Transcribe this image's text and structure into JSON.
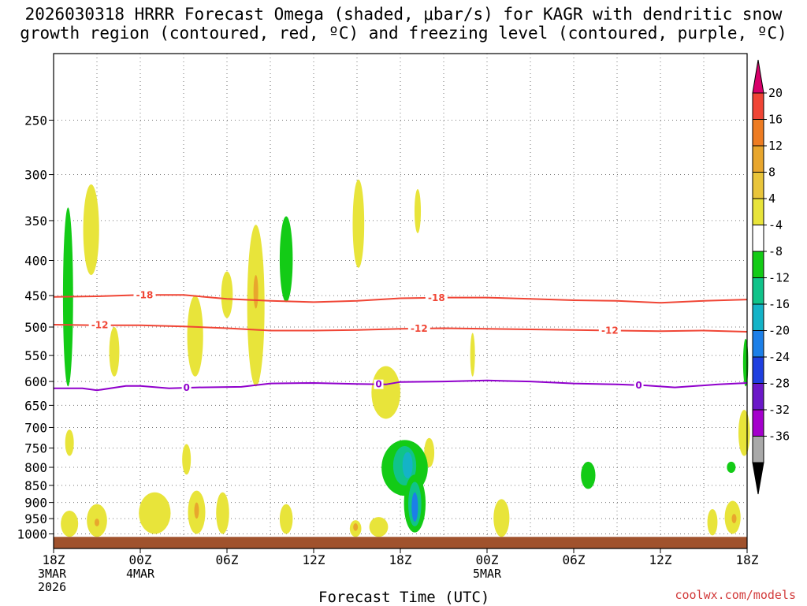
{
  "chart_data": {
    "type": "heatmap",
    "title_line1": "2026030318 HRRR Forecast Omega (shaded, μbar/s) for KAGR with dendritic snow",
    "title_line2": "growth region (contoured, red, ºC) and freezing level (contoured, purple, ºC)",
    "xlabel": "Forecast Time (UTC)",
    "credit": "coolwx.com/models",
    "x_range_hours": [
      0,
      48
    ],
    "x_ticks": [
      {
        "hour": 0,
        "lines": [
          "18Z",
          "3MAR",
          "2026"
        ]
      },
      {
        "hour": 6,
        "lines": [
          "00Z",
          "4MAR"
        ]
      },
      {
        "hour": 12,
        "lines": [
          "06Z"
        ]
      },
      {
        "hour": 18,
        "lines": [
          "12Z"
        ]
      },
      {
        "hour": 24,
        "lines": [
          "18Z"
        ]
      },
      {
        "hour": 30,
        "lines": [
          "00Z",
          "5MAR"
        ]
      },
      {
        "hour": 36,
        "lines": [
          "06Z"
        ]
      },
      {
        "hour": 42,
        "lines": [
          "12Z"
        ]
      },
      {
        "hour": 48,
        "lines": [
          "18Z"
        ]
      }
    ],
    "y_axis": {
      "unit": "hPa",
      "scale": "log-pressure",
      "range": [
        200,
        1050
      ],
      "ticks": [
        250,
        300,
        350,
        400,
        450,
        500,
        550,
        600,
        650,
        700,
        750,
        800,
        850,
        900,
        950,
        1000
      ]
    },
    "grid": true,
    "colorbar": {
      "labels": [
        "20",
        "16",
        "12",
        "8",
        "4",
        "-4",
        "-8",
        "-12",
        "-16",
        "-20",
        "-24",
        "-28",
        "-32",
        "-36"
      ],
      "colors": [
        "#d7006a",
        "#f04535",
        "#ee7c22",
        "#e8a62d",
        "#e9c53a",
        "#e8e43a",
        "#ffffff",
        "#13cb16",
        "#10c38a",
        "#14b3c7",
        "#1c7fe8",
        "#1f3fe0",
        "#6b18c8",
        "#a400cc",
        "#a9a9a9",
        "#000000"
      ]
    },
    "contours": [
      {
        "name": "dgz-minus18",
        "label": "-18",
        "color": "#f04535",
        "points": [
          [
            0,
            452
          ],
          [
            3,
            451
          ],
          [
            6,
            449
          ],
          [
            9,
            449
          ],
          [
            12,
            455
          ],
          [
            15,
            458
          ],
          [
            18,
            460
          ],
          [
            21,
            458
          ],
          [
            24,
            454
          ],
          [
            27,
            453
          ],
          [
            30,
            453
          ],
          [
            33,
            455
          ],
          [
            36,
            457
          ],
          [
            39,
            458
          ],
          [
            42,
            461
          ],
          [
            45,
            458
          ],
          [
            48,
            456
          ]
        ],
        "label_hours": [
          6.3,
          26.5
        ]
      },
      {
        "name": "dgz-minus12",
        "label": "-12",
        "color": "#f04535",
        "points": [
          [
            0,
            496
          ],
          [
            3,
            497
          ],
          [
            6,
            497
          ],
          [
            9,
            499
          ],
          [
            12,
            502
          ],
          [
            15,
            506
          ],
          [
            18,
            506
          ],
          [
            21,
            505
          ],
          [
            24,
            503
          ],
          [
            27,
            502
          ],
          [
            30,
            503
          ],
          [
            33,
            504
          ],
          [
            36,
            505
          ],
          [
            39,
            506
          ],
          [
            42,
            507
          ],
          [
            45,
            506
          ],
          [
            48,
            508
          ]
        ],
        "label_hours": [
          3.2,
          25.3,
          38.5
        ]
      },
      {
        "name": "freezing-level",
        "label": "0",
        "color": "#9000cc",
        "points": [
          [
            0,
            614
          ],
          [
            2,
            614
          ],
          [
            3,
            618
          ],
          [
            5,
            609
          ],
          [
            6,
            609
          ],
          [
            8,
            614
          ],
          [
            10,
            612
          ],
          [
            13,
            611
          ],
          [
            15,
            604
          ],
          [
            18,
            603
          ],
          [
            21,
            605
          ],
          [
            23,
            606
          ],
          [
            24,
            601
          ],
          [
            27,
            600
          ],
          [
            30,
            598
          ],
          [
            33,
            600
          ],
          [
            36,
            604
          ],
          [
            39,
            606
          ],
          [
            41,
            608
          ],
          [
            43,
            612
          ],
          [
            46,
            606
          ],
          [
            48,
            603
          ]
        ],
        "label_hours": [
          9.2,
          22.5,
          40.5
        ]
      }
    ],
    "omega_cells": [
      {
        "hour": 1.0,
        "p_top": 335,
        "p_bot": 610,
        "hw": 0.35,
        "color": "#13cb16"
      },
      {
        "hour": 2.6,
        "p_top": 310,
        "p_bot": 420,
        "hw": 0.55,
        "color": "#e8e43a"
      },
      {
        "hour": 4.2,
        "p_top": 500,
        "p_bot": 590,
        "hw": 0.35,
        "color": "#e8e43a"
      },
      {
        "hour": 1.1,
        "p_top": 705,
        "p_bot": 770,
        "hw": 0.3,
        "color": "#e8e43a"
      },
      {
        "hour": 1.1,
        "p_top": 925,
        "p_bot": 1010,
        "hw": 0.6,
        "color": "#e8e43a"
      },
      {
        "hour": 3.0,
        "p_top": 905,
        "p_bot": 1010,
        "hw": 0.7,
        "color": "#e8e43a"
      },
      {
        "hour": 3.0,
        "p_top": 950,
        "p_bot": 975,
        "hw": 0.12,
        "color": "#e8a62d"
      },
      {
        "hour": 7.0,
        "p_top": 870,
        "p_bot": 1000,
        "hw": 1.1,
        "color": "#e8e43a"
      },
      {
        "hour": 9.8,
        "p_top": 450,
        "p_bot": 590,
        "hw": 0.55,
        "color": "#e8e43a"
      },
      {
        "hour": 9.2,
        "p_top": 740,
        "p_bot": 820,
        "hw": 0.3,
        "color": "#e8e43a"
      },
      {
        "hour": 9.9,
        "p_top": 865,
        "p_bot": 1000,
        "hw": 0.6,
        "color": "#e8e43a"
      },
      {
        "hour": 9.9,
        "p_top": 900,
        "p_bot": 950,
        "hw": 0.15,
        "color": "#e8a62d"
      },
      {
        "hour": 11.7,
        "p_top": 870,
        "p_bot": 1000,
        "hw": 0.45,
        "color": "#e8e43a"
      },
      {
        "hour": 12.0,
        "p_top": 415,
        "p_bot": 485,
        "hw": 0.4,
        "color": "#e8e43a"
      },
      {
        "hour": 14.0,
        "p_top": 355,
        "p_bot": 610,
        "hw": 0.6,
        "color": "#e8e43a"
      },
      {
        "hour": 14.0,
        "p_top": 420,
        "p_bot": 470,
        "hw": 0.12,
        "color": "#e8a62d"
      },
      {
        "hour": 16.1,
        "p_top": 345,
        "p_bot": 460,
        "hw": 0.45,
        "color": "#13cb16"
      },
      {
        "hour": 16.1,
        "p_top": 905,
        "p_bot": 1000,
        "hw": 0.45,
        "color": "#e8e43a"
      },
      {
        "hour": 21.1,
        "p_top": 305,
        "p_bot": 410,
        "hw": 0.4,
        "color": "#e8e43a"
      },
      {
        "hour": 20.9,
        "p_top": 955,
        "p_bot": 1010,
        "hw": 0.4,
        "color": "#e8e43a"
      },
      {
        "hour": 20.9,
        "p_top": 965,
        "p_bot": 990,
        "hw": 0.1,
        "color": "#e8a62d"
      },
      {
        "hour": 23.0,
        "p_top": 570,
        "p_bot": 680,
        "hw": 1.0,
        "color": "#e8e43a"
      },
      {
        "hour": 22.5,
        "p_top": 945,
        "p_bot": 1010,
        "hw": 0.65,
        "color": "#e8e43a"
      },
      {
        "hour": 25.2,
        "p_top": 315,
        "p_bot": 365,
        "hw": 0.22,
        "color": "#e8e43a"
      },
      {
        "hour": 26.0,
        "p_top": 725,
        "p_bot": 800,
        "hw": 0.35,
        "color": "#e8e43a"
      },
      {
        "hour": 24.3,
        "p_top": 730,
        "p_bot": 880,
        "hw": 1.6,
        "color": "#13cb16"
      },
      {
        "hour": 24.3,
        "p_top": 745,
        "p_bot": 850,
        "hw": 0.8,
        "color": "#10c38a"
      },
      {
        "hour": 24.5,
        "p_top": 760,
        "p_bot": 830,
        "hw": 0.35,
        "color": "#14b3c7"
      },
      {
        "hour": 25.0,
        "p_top": 820,
        "p_bot": 995,
        "hw": 0.75,
        "color": "#13cb16"
      },
      {
        "hour": 25.0,
        "p_top": 840,
        "p_bot": 975,
        "hw": 0.45,
        "color": "#10c38a"
      },
      {
        "hour": 25.0,
        "p_top": 870,
        "p_bot": 960,
        "hw": 0.22,
        "color": "#1c7fe8"
      },
      {
        "hour": 29.0,
        "p_top": 510,
        "p_bot": 590,
        "hw": 0.15,
        "color": "#e8e43a"
      },
      {
        "hour": 31.0,
        "p_top": 890,
        "p_bot": 1010,
        "hw": 0.55,
        "color": "#e8e43a"
      },
      {
        "hour": 37.0,
        "p_top": 785,
        "p_bot": 860,
        "hw": 0.5,
        "color": "#13cb16"
      },
      {
        "hour": 45.6,
        "p_top": 920,
        "p_bot": 1005,
        "hw": 0.35,
        "color": "#e8e43a"
      },
      {
        "hour": 47.0,
        "p_top": 895,
        "p_bot": 1000,
        "hw": 0.55,
        "color": "#e8e43a"
      },
      {
        "hour": 47.1,
        "p_top": 935,
        "p_bot": 965,
        "hw": 0.12,
        "color": "#e8a62d"
      },
      {
        "hour": 46.9,
        "p_top": 785,
        "p_bot": 815,
        "hw": 0.3,
        "color": "#13cb16"
      },
      {
        "hour": 47.8,
        "p_top": 660,
        "p_bot": 770,
        "hw": 0.4,
        "color": "#e8e43a"
      },
      {
        "hour": 47.9,
        "p_top": 520,
        "p_bot": 610,
        "hw": 0.18,
        "color": "#13cb16"
      }
    ],
    "ground_color": "#a0522d"
  }
}
